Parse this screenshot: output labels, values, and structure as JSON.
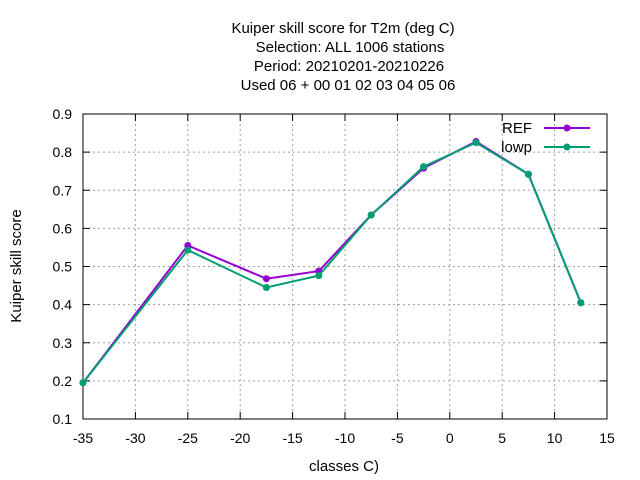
{
  "chart_data": {
    "type": "line",
    "title_lines": [
      "Kuiper skill score  for T2m (deg C)",
      "Selection: ALL   1006 stations",
      "Period: 20210201-20210226",
      "Used  06  + 00 01 02 03 04 05 06"
    ],
    "xlabel": "classes C)",
    "ylabel": "Kuiper skill score",
    "xlim": [
      -35,
      15
    ],
    "ylim": [
      0.1,
      0.9
    ],
    "xticks": [
      -35,
      -30,
      -25,
      -20,
      -15,
      -10,
      -5,
      0,
      5,
      10,
      15
    ],
    "yticks": [
      0.1,
      0.2,
      0.3,
      0.4,
      0.5,
      0.6,
      0.7,
      0.8,
      0.9
    ],
    "xtick_labels": [
      "-35",
      "-30",
      "-25",
      "-20",
      "-15",
      "-10",
      "-5",
      "0",
      "5",
      "10",
      "15"
    ],
    "ytick_labels": [
      "0.1",
      "0.2",
      "0.3",
      "0.4",
      "0.5",
      "0.6",
      "0.7",
      "0.8",
      "0.9"
    ],
    "grid": true,
    "legend_position": "top-right",
    "series": [
      {
        "name": "REF",
        "color": "#9400d3",
        "x": [
          -35,
          -25,
          -17.5,
          -12.5,
          -7.5,
          -2.5,
          2.5,
          7.5,
          12.5
        ],
        "y": [
          0.195,
          0.555,
          0.468,
          0.488,
          0.635,
          0.758,
          0.828,
          0.742,
          0.405
        ]
      },
      {
        "name": "lowp",
        "color": "#009e73",
        "x": [
          -35,
          -25,
          -17.5,
          -12.5,
          -7.5,
          -2.5,
          2.5,
          7.5,
          12.5
        ],
        "y": [
          0.195,
          0.543,
          0.445,
          0.476,
          0.635,
          0.762,
          0.825,
          0.742,
          0.405
        ]
      }
    ]
  }
}
